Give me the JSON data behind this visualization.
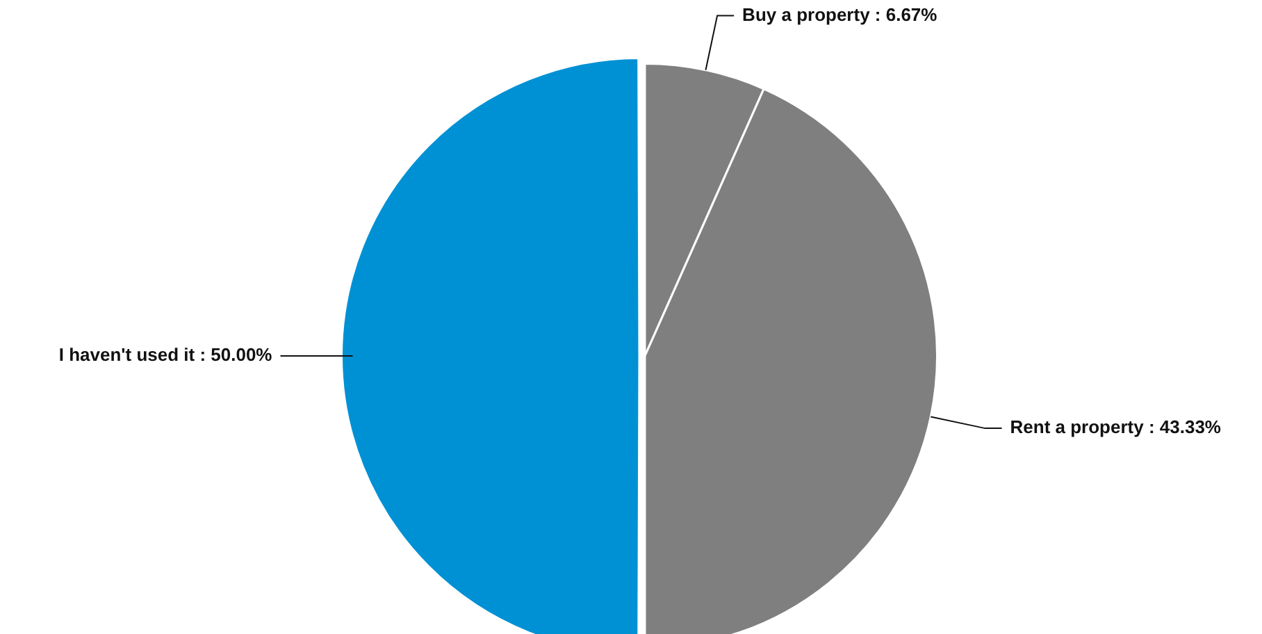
{
  "chart_data": {
    "type": "pie",
    "categories": [
      "Buy a property",
      "Rent a property",
      "I haven't used it"
    ],
    "values": [
      6.67,
      43.33,
      50.0
    ],
    "value_labels": [
      "6.67%",
      "43.33%",
      "50.00%"
    ],
    "colors": [
      "#7f7f7f",
      "#7f7f7f",
      "#0091d5"
    ],
    "legend": false
  }
}
